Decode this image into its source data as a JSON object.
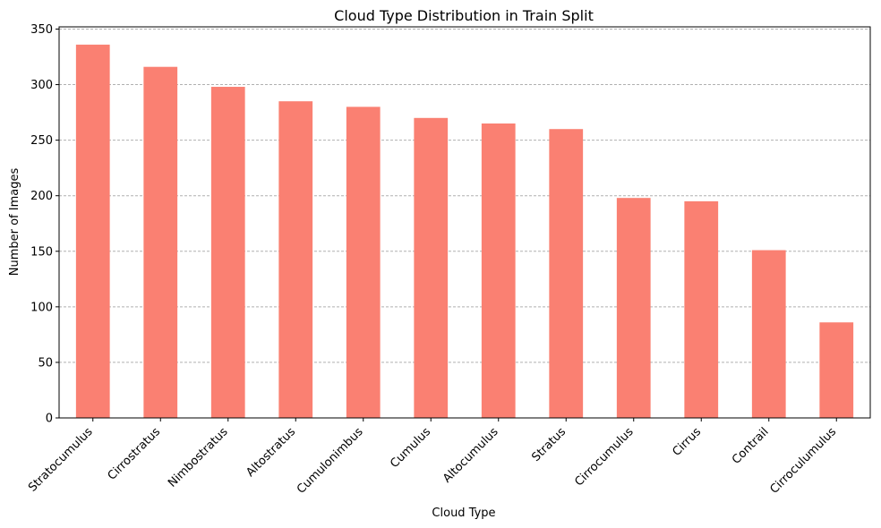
{
  "chart_data": {
    "type": "bar",
    "title": "Cloud Type Distribution in Train Split",
    "xlabel": "Cloud Type",
    "ylabel": "Number of Images",
    "categories": [
      "Stratocumulus",
      "Cirrostratus",
      "Nimbostratus",
      "Altostratus",
      "Cumulonimbus",
      "Cumulus",
      "Altocumulus",
      "Stratus",
      "Cirrocumulus",
      "Cirrus",
      "Contrail",
      "Cirroculumulus"
    ],
    "values": [
      336,
      316,
      298,
      285,
      280,
      270,
      265,
      260,
      198,
      195,
      151,
      86
    ],
    "ylim": [
      0,
      352
    ],
    "yticks": [
      0,
      50,
      100,
      150,
      200,
      250,
      300,
      350
    ],
    "grid": "y, dashed",
    "bar_color": "#fa8072"
  }
}
